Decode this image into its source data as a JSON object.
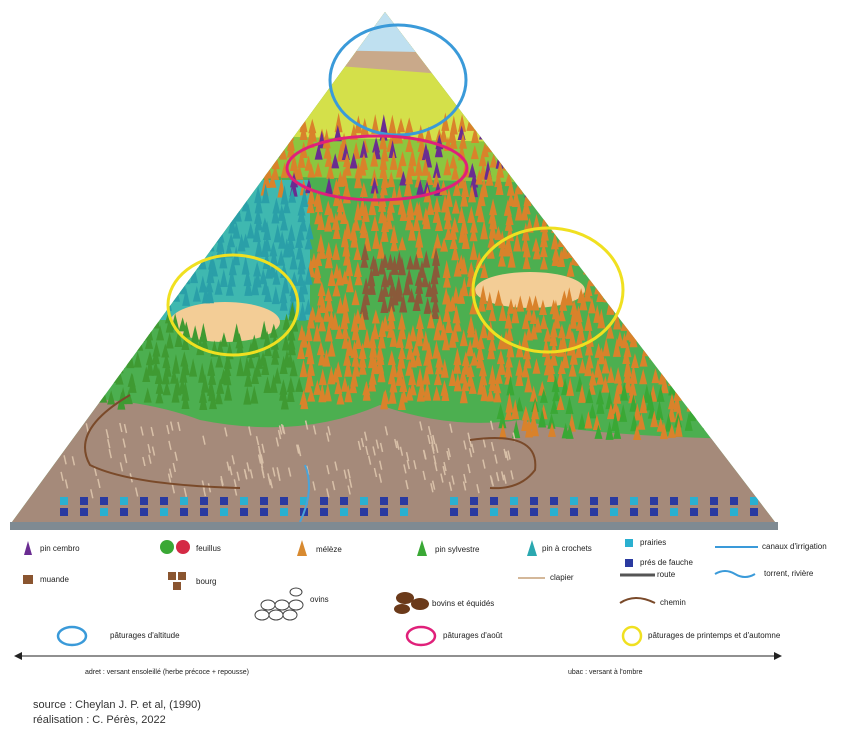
{
  "legend": {
    "items": [
      {
        "label": "pin cembro"
      },
      {
        "label": "muande"
      },
      {
        "label": "feuillus"
      },
      {
        "label": "bourg"
      },
      {
        "label": "mélèze"
      },
      {
        "label": "ovins"
      },
      {
        "label": "pin sylvestre"
      },
      {
        "label": "bovins et équidés"
      },
      {
        "label": "pin à crochets"
      },
      {
        "label": "clapier"
      },
      {
        "label": "prairies"
      },
      {
        "label": "prés de fauche"
      },
      {
        "label": "route"
      },
      {
        "label": "chemin"
      },
      {
        "label": "canaux d'irrigation"
      },
      {
        "label": "torrent, rivière"
      }
    ]
  },
  "zones": [
    {
      "label": "pâturages d'altitude"
    },
    {
      "label": "pâturages d'août"
    },
    {
      "label": "pâturages de printemps et d'automne"
    }
  ],
  "axis": {
    "left": "adret : versant ensoleillé (herbe précoce + repousse)",
    "right": "ubac : versant à l'ombre"
  },
  "credits": {
    "source": "source : Cheylan J. P. et al, (1990)",
    "author": "réalisation :  C. Pérès, 2022"
  }
}
